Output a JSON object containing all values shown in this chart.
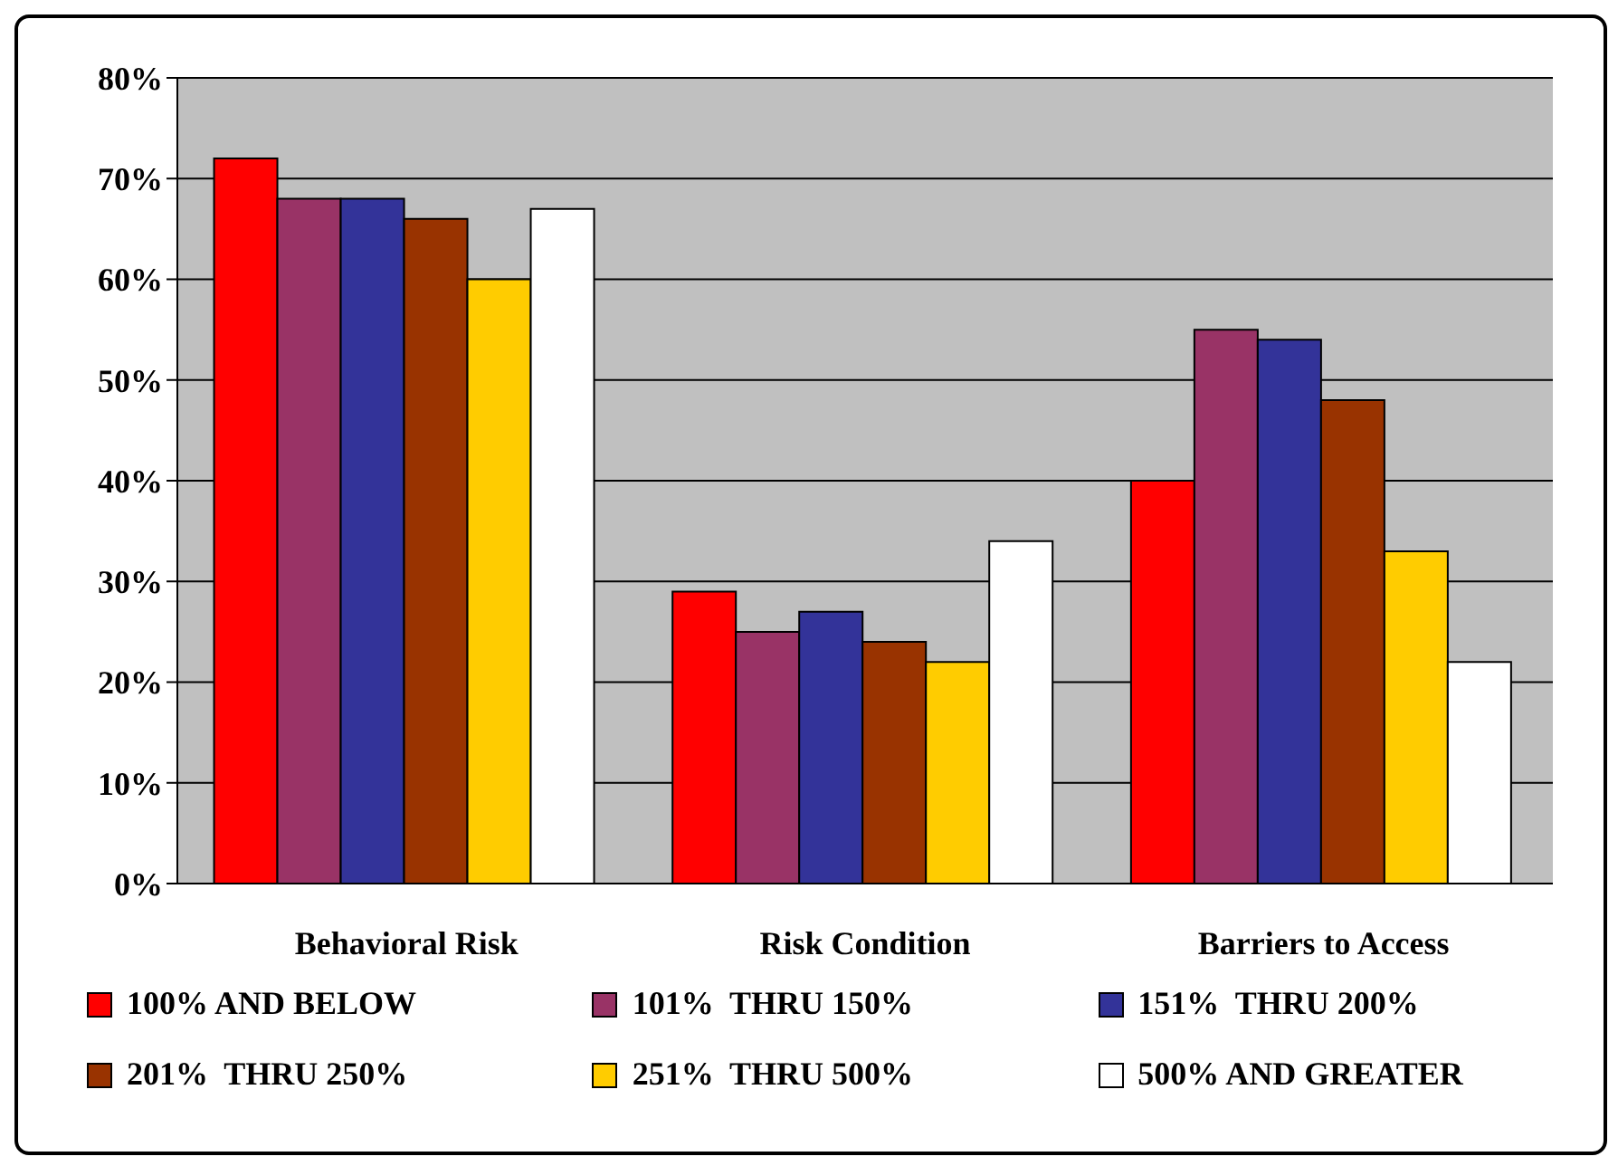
{
  "chart_data": {
    "type": "bar",
    "categories": [
      "Behavioral Risk",
      "Risk Condition",
      "Barriers to Access"
    ],
    "series": [
      {
        "name": "100% AND BELOW",
        "color": "#ff0000",
        "values": [
          72,
          29,
          40
        ]
      },
      {
        "name": "101%  THRU 150%",
        "color": "#993366",
        "values": [
          68,
          25,
          55
        ]
      },
      {
        "name": "151%  THRU 200%",
        "color": "#333399",
        "values": [
          68,
          27,
          54
        ]
      },
      {
        "name": "201%  THRU 250%",
        "color": "#993300",
        "values": [
          66,
          24,
          48
        ]
      },
      {
        "name": "251%  THRU 500%",
        "color": "#ffcc00",
        "values": [
          60,
          22,
          33
        ]
      },
      {
        "name": "500% AND GREATER",
        "color": "#ffffff",
        "values": [
          67,
          34,
          22
        ]
      }
    ],
    "ylim": [
      0,
      80
    ],
    "yticks": [
      {
        "value": 0,
        "label": "0%"
      },
      {
        "value": 10,
        "label": "10%"
      },
      {
        "value": 20,
        "label": "20%"
      },
      {
        "value": 30,
        "label": "30%"
      },
      {
        "value": 40,
        "label": "40%"
      },
      {
        "value": 50,
        "label": "50%"
      },
      {
        "value": 60,
        "label": "60%"
      },
      {
        "value": 70,
        "label": "70%"
      },
      {
        "value": 80,
        "label": "80%"
      }
    ],
    "grid": "y",
    "legend": "bottom"
  }
}
